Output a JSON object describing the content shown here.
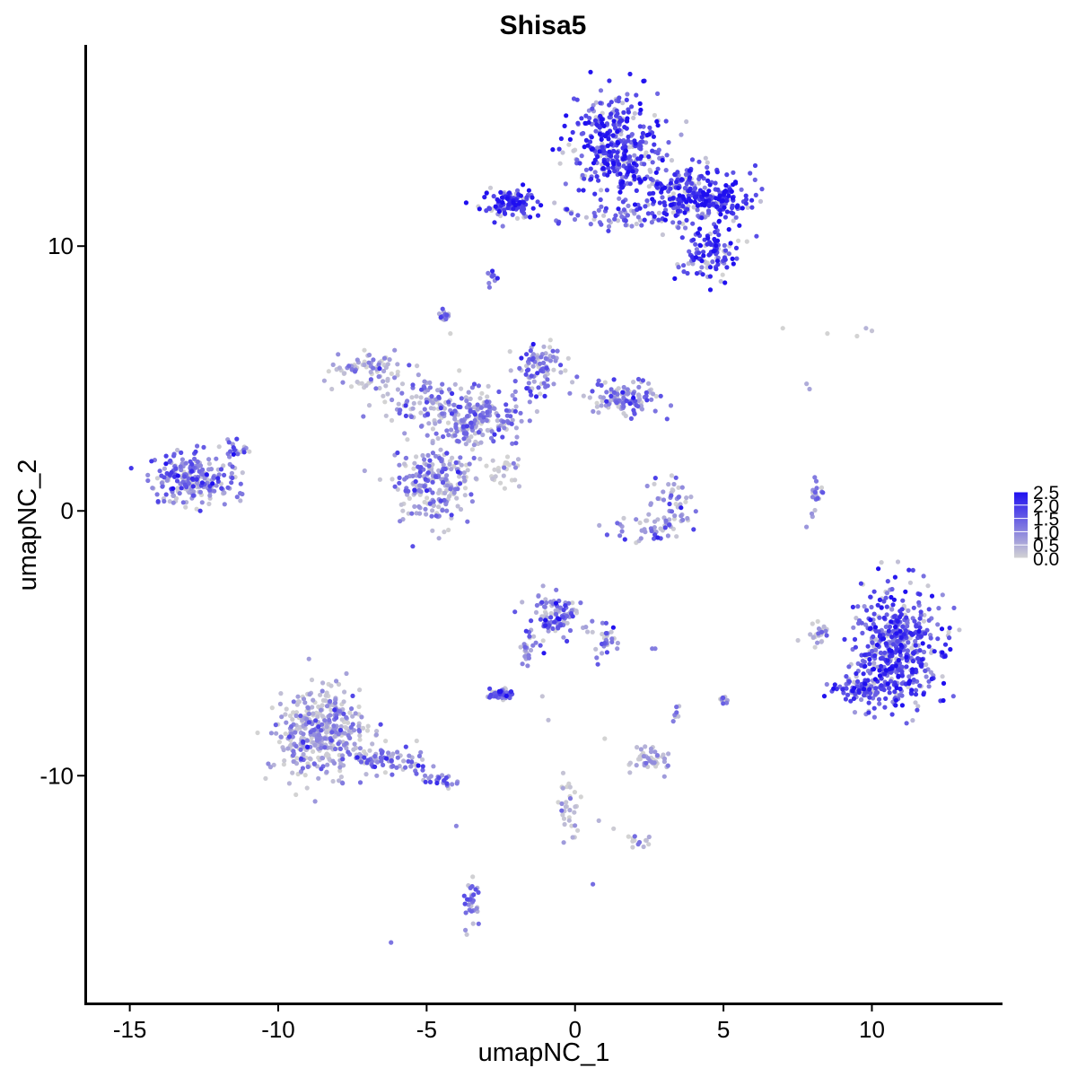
{
  "chart_data": {
    "type": "scatter",
    "title": "Shisa5",
    "xlabel": "umapNC_1",
    "ylabel": "umapNC_2",
    "xlim": [
      -16.5,
      14.4
    ],
    "ylim": [
      -18.6,
      17.6
    ],
    "x_ticks": [
      -15,
      -10,
      -5,
      0,
      5,
      10
    ],
    "x_tick_labels": [
      "-15",
      "-10",
      "-5",
      "0",
      "5",
      "10"
    ],
    "y_ticks": [
      -10,
      0,
      10
    ],
    "y_tick_labels": [
      "-10",
      "0",
      "10"
    ],
    "grid": false,
    "color_scale": {
      "low_color": "#d3d3d3",
      "high_color": "#1f0ff0",
      "min": 0.0,
      "max": 2.5,
      "legend_placement": "right",
      "legend_ticks": [
        2.5,
        2.0,
        1.5,
        1.0,
        0.5,
        0.0
      ],
      "legend_labels": [
        "2.5",
        "2.0",
        "1.5",
        "1.0",
        "0.5",
        "0.0"
      ]
    },
    "clusters": [
      {
        "x": 1.4,
        "y": 13.8,
        "sx": 0.9,
        "sy": 1.2,
        "n": 380,
        "expr": 1.9
      },
      {
        "x": 3.8,
        "y": 12.0,
        "sx": 1.1,
        "sy": 0.7,
        "n": 260,
        "expr": 1.8
      },
      {
        "x": 5.0,
        "y": 11.6,
        "sx": 0.5,
        "sy": 0.4,
        "n": 70,
        "expr": 2.3
      },
      {
        "x": -2.2,
        "y": 11.6,
        "sx": 0.6,
        "sy": 0.35,
        "n": 120,
        "expr": 2.0
      },
      {
        "x": 4.6,
        "y": 9.7,
        "sx": 0.6,
        "sy": 0.6,
        "n": 110,
        "expr": 1.8
      },
      {
        "x": 1.5,
        "y": 11.1,
        "sx": 1.4,
        "sy": 0.3,
        "n": 60,
        "expr": 1.4
      },
      {
        "x": -2.8,
        "y": 8.9,
        "sx": 0.1,
        "sy": 0.25,
        "n": 10,
        "expr": 1.3
      },
      {
        "x": -4.4,
        "y": 7.3,
        "sx": 0.15,
        "sy": 0.2,
        "n": 15,
        "expr": 1.1
      },
      {
        "x": -7.0,
        "y": 5.3,
        "sx": 0.8,
        "sy": 0.5,
        "n": 80,
        "expr": 0.6
      },
      {
        "x": -4.8,
        "y": 4.0,
        "sx": 0.9,
        "sy": 0.6,
        "n": 120,
        "expr": 0.9
      },
      {
        "x": -3.6,
        "y": 3.2,
        "sx": 0.5,
        "sy": 0.7,
        "n": 90,
        "expr": 1.0
      },
      {
        "x": -1.2,
        "y": 5.3,
        "sx": 0.5,
        "sy": 0.7,
        "n": 90,
        "expr": 1.2
      },
      {
        "x": 1.6,
        "y": 4.2,
        "sx": 0.8,
        "sy": 0.4,
        "n": 120,
        "expr": 1.1
      },
      {
        "x": -2.6,
        "y": 3.6,
        "sx": 0.6,
        "sy": 0.6,
        "n": 80,
        "expr": 1.0
      },
      {
        "x": -4.8,
        "y": 0.9,
        "sx": 0.8,
        "sy": 1.0,
        "n": 230,
        "expr": 0.9
      },
      {
        "x": -2.5,
        "y": 1.5,
        "sx": 0.5,
        "sy": 0.3,
        "n": 30,
        "expr": 0.2
      },
      {
        "x": -12.9,
        "y": 1.2,
        "sx": 0.9,
        "sy": 0.6,
        "n": 230,
        "expr": 1.2
      },
      {
        "x": -11.4,
        "y": 2.4,
        "sx": 0.3,
        "sy": 0.3,
        "n": 20,
        "expr": 1.2
      },
      {
        "x": 3.3,
        "y": 0.3,
        "sx": 0.5,
        "sy": 0.8,
        "n": 50,
        "expr": 0.9
      },
      {
        "x": 2.6,
        "y": -0.7,
        "sx": 0.9,
        "sy": 0.3,
        "n": 40,
        "expr": 1.1
      },
      {
        "x": 8.1,
        "y": 0.4,
        "sx": 0.15,
        "sy": 0.6,
        "n": 20,
        "expr": 1.1
      },
      {
        "x": 10.8,
        "y": -5.2,
        "sx": 0.9,
        "sy": 1.3,
        "n": 520,
        "expr": 1.7
      },
      {
        "x": 9.6,
        "y": -6.7,
        "sx": 0.7,
        "sy": 0.3,
        "n": 80,
        "expr": 1.6
      },
      {
        "x": 8.2,
        "y": -4.6,
        "sx": 0.25,
        "sy": 0.3,
        "n": 25,
        "expr": 0.6
      },
      {
        "x": -0.6,
        "y": -4.0,
        "sx": 0.5,
        "sy": 0.5,
        "n": 100,
        "expr": 1.2
      },
      {
        "x": 1.0,
        "y": -4.9,
        "sx": 0.3,
        "sy": 0.5,
        "n": 30,
        "expr": 1.2
      },
      {
        "x": -1.6,
        "y": -5.3,
        "sx": 0.3,
        "sy": 0.5,
        "n": 25,
        "expr": 1.1
      },
      {
        "x": -2.5,
        "y": -6.9,
        "sx": 0.25,
        "sy": 0.12,
        "n": 50,
        "expr": 1.3
      },
      {
        "x": 2.4,
        "y": -9.4,
        "sx": 0.4,
        "sy": 0.3,
        "n": 45,
        "expr": 0.6
      },
      {
        "x": 3.4,
        "y": -7.6,
        "sx": 0.1,
        "sy": 0.2,
        "n": 8,
        "expr": 0.7
      },
      {
        "x": 5.0,
        "y": -7.2,
        "sx": 0.1,
        "sy": 0.15,
        "n": 10,
        "expr": 0.8
      },
      {
        "x": -8.6,
        "y": -8.4,
        "sx": 1.0,
        "sy": 1.1,
        "n": 420,
        "expr": 0.6
      },
      {
        "x": -6.2,
        "y": -9.5,
        "sx": 0.8,
        "sy": 0.35,
        "n": 80,
        "expr": 1.0
      },
      {
        "x": -4.5,
        "y": -10.2,
        "sx": 0.4,
        "sy": 0.2,
        "n": 25,
        "expr": 1.1
      },
      {
        "x": -3.5,
        "y": -14.9,
        "sx": 0.2,
        "sy": 0.6,
        "n": 30,
        "expr": 1.2
      },
      {
        "x": -0.2,
        "y": -11.3,
        "sx": 0.2,
        "sy": 0.7,
        "n": 30,
        "expr": 0.3
      },
      {
        "x": 2.2,
        "y": -12.5,
        "sx": 0.3,
        "sy": 0.15,
        "n": 12,
        "expr": 0.8
      }
    ],
    "scattered_points": [
      [
        7.0,
        6.9,
        0.0
      ],
      [
        8.5,
        6.7,
        0.0
      ],
      [
        9.5,
        6.6,
        0.0
      ],
      [
        9.8,
        6.9,
        0.4
      ],
      [
        10.0,
        6.8,
        0.2
      ],
      [
        7.8,
        4.8,
        0.5
      ],
      [
        7.9,
        4.6,
        0.6
      ],
      [
        -6.2,
        -16.3,
        1.2
      ],
      [
        0.6,
        -14.1,
        1.3
      ],
      [
        2.6,
        -5.2,
        1.1
      ],
      [
        2.7,
        -5.2,
        1.1
      ],
      [
        -1.1,
        -7.0,
        0.2
      ],
      [
        -0.9,
        -7.9,
        0.3
      ],
      [
        -4.0,
        -11.9,
        1.0
      ],
      [
        0.8,
        -11.7,
        0.4
      ],
      [
        1.3,
        -12.0,
        0.1
      ],
      [
        1.8,
        -12.3,
        0.0
      ],
      [
        -2.9,
        8.6,
        1.0
      ],
      [
        -2.7,
        8.7,
        0.9
      ],
      [
        -4.2,
        6.7,
        0.0
      ],
      [
        -3.9,
        5.3,
        0.0
      ],
      [
        1.0,
        -8.6,
        0.0
      ],
      [
        5.5,
        10.2,
        0.0
      ],
      [
        5.2,
        10.0,
        0.1
      ],
      [
        0.2,
        -10.8,
        0.0
      ],
      [
        -0.4,
        -9.9,
        0.2
      ]
    ]
  }
}
